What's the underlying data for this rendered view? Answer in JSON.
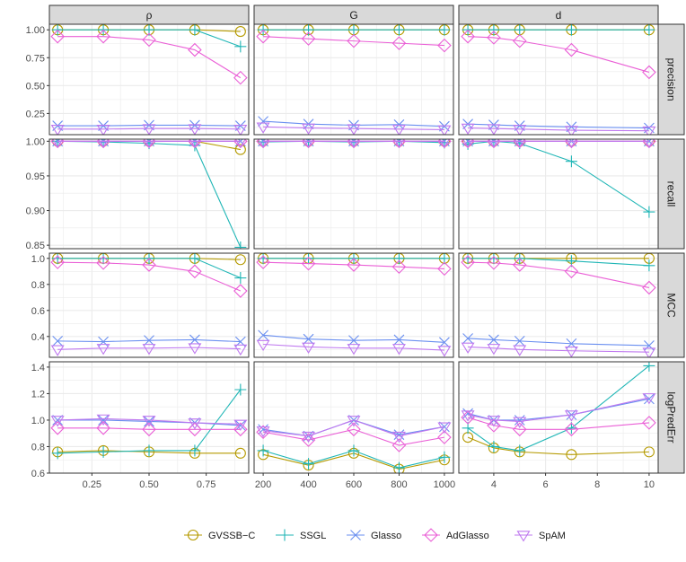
{
  "chart_data": {
    "type": "line",
    "layout": "faceted-grid",
    "columns": [
      "ρ",
      "G",
      "d"
    ],
    "rows": [
      "precision",
      "recall",
      "MCC",
      "logPredErr"
    ],
    "x": {
      "rho": [
        0.1,
        0.3,
        0.5,
        0.7,
        0.9
      ],
      "G": [
        200,
        400,
        600,
        800,
        1000
      ],
      "d": [
        3,
        4,
        5,
        7,
        10
      ]
    },
    "xlim": {
      "rho": [
        0.064,
        0.936
      ],
      "G": [
        160,
        1040
      ],
      "d": [
        2.65,
        10.35
      ]
    },
    "xticks": {
      "rho": [
        0.25,
        0.5,
        0.75
      ],
      "G": [
        200,
        400,
        600,
        800,
        1000
      ],
      "d": [
        4,
        6,
        8,
        10
      ]
    },
    "xtick_labels": {
      "rho": [
        "0.25",
        "0.50",
        "0.75"
      ],
      "G": [
        "200",
        "400",
        "600",
        "800",
        "1000"
      ],
      "d": [
        "4",
        "6",
        "8",
        "10"
      ]
    },
    "ylim": {
      "precision": [
        0.06,
        1.05
      ],
      "recall": [
        0.845,
        1.003
      ],
      "MCC": [
        0.24,
        1.04
      ],
      "logPredErr": [
        0.6,
        1.44
      ]
    },
    "yticks": {
      "precision": [
        0.25,
        0.5,
        0.75,
        1.0
      ],
      "recall": [
        0.85,
        0.9,
        0.95,
        1.0
      ],
      "MCC": [
        0.4,
        0.6,
        0.8,
        1.0
      ],
      "logPredErr": [
        0.6,
        0.8,
        1.0,
        1.2,
        1.4
      ]
    },
    "ytick_labels": {
      "precision": [
        "0.25",
        "0.50",
        "0.75",
        "1.00"
      ],
      "recall": [
        "0.85",
        "0.90",
        "0.95",
        "1.00"
      ],
      "MCC": [
        "0.4",
        "0.6",
        "0.8",
        "1.0"
      ],
      "logPredErr": [
        "0.6",
        "0.8",
        "1.0",
        "1.2",
        "1.4"
      ]
    },
    "grid": true,
    "legend_position": "bottom",
    "series": [
      {
        "name": "GVSSB−C",
        "key": "gvssb",
        "color": "#b59a00",
        "shape": "circle",
        "values": {
          "precision": {
            "rho": [
              1.0,
              1.0,
              1.0,
              1.0,
              0.985
            ],
            "G": [
              1.0,
              1.0,
              1.0,
              1.0,
              1.0
            ],
            "d": [
              1.0,
              1.0,
              1.0,
              1.0,
              1.0
            ]
          },
          "recall": {
            "rho": [
              1.0,
              1.0,
              1.0,
              1.0,
              0.988
            ],
            "G": [
              1.0,
              1.0,
              1.0,
              1.0,
              1.0
            ],
            "d": [
              1.0,
              1.0,
              1.0,
              1.0,
              1.0
            ]
          },
          "MCC": {
            "rho": [
              1.0,
              1.0,
              1.0,
              1.0,
              0.99
            ],
            "G": [
              1.0,
              1.0,
              1.0,
              1.0,
              1.0
            ],
            "d": [
              1.0,
              1.0,
              1.0,
              1.0,
              1.0
            ]
          },
          "logPredErr": {
            "rho": [
              0.76,
              0.77,
              0.76,
              0.75,
              0.75
            ],
            "G": [
              0.74,
              0.66,
              0.75,
              0.63,
              0.7
            ],
            "d": [
              0.87,
              0.79,
              0.76,
              0.74,
              0.76
            ]
          }
        }
      },
      {
        "name": "SSGL",
        "key": "ssgl",
        "color": "#20b6b6",
        "shape": "plus",
        "values": {
          "precision": {
            "rho": [
              1.0,
              1.0,
              1.0,
              1.0,
              0.85
            ],
            "G": [
              1.0,
              1.0,
              1.0,
              1.0,
              1.0
            ],
            "d": [
              1.0,
              1.0,
              1.0,
              1.0,
              1.0
            ]
          },
          "recall": {
            "rho": [
              1.0,
              0.999,
              0.997,
              0.994,
              0.847
            ],
            "G": [
              0.999,
              1.0,
              0.999,
              1.0,
              0.998
            ],
            "d": [
              0.996,
              1.0,
              0.997,
              0.971,
              0.898
            ]
          },
          "MCC": {
            "rho": [
              1.0,
              1.0,
              1.0,
              1.0,
              0.85
            ],
            "G": [
              1.0,
              1.0,
              1.0,
              1.0,
              1.0
            ],
            "d": [
              1.0,
              1.0,
              1.0,
              0.98,
              0.945
            ]
          },
          "logPredErr": {
            "rho": [
              0.75,
              0.76,
              0.77,
              0.77,
              1.23
            ],
            "G": [
              0.77,
              0.67,
              0.77,
              0.64,
              0.72
            ],
            "d": [
              0.94,
              0.8,
              0.77,
              0.94,
              1.41
            ]
          }
        }
      },
      {
        "name": "Glasso",
        "key": "glasso",
        "color": "#6a8ff0",
        "shape": "cross",
        "values": {
          "precision": {
            "rho": [
              0.14,
              0.14,
              0.145,
              0.145,
              0.14
            ],
            "G": [
              0.18,
              0.155,
              0.145,
              0.15,
              0.135
            ],
            "d": [
              0.155,
              0.148,
              0.14,
              0.13,
              0.12
            ]
          },
          "recall": {
            "rho": [
              1.0,
              1.0,
              1.0,
              1.0,
              1.0
            ],
            "G": [
              1.0,
              1.0,
              1.0,
              1.0,
              1.0
            ],
            "d": [
              1.0,
              1.0,
              1.0,
              1.0,
              1.0
            ]
          },
          "MCC": {
            "rho": [
              0.365,
              0.36,
              0.37,
              0.375,
              0.36
            ],
            "G": [
              0.41,
              0.38,
              0.37,
              0.375,
              0.355
            ],
            "d": [
              0.385,
              0.375,
              0.365,
              0.345,
              0.33
            ]
          },
          "logPredErr": {
            "rho": [
              1.0,
              1.0,
              0.99,
              0.98,
              0.96
            ],
            "G": [
              0.93,
              0.88,
              1.0,
              0.89,
              0.95
            ],
            "d": [
              1.05,
              1.0,
              1.0,
              1.04,
              1.16
            ]
          }
        }
      },
      {
        "name": "AdGlasso",
        "key": "adglasso",
        "color": "#ea5fd6",
        "shape": "diamond",
        "values": {
          "precision": {
            "rho": [
              0.94,
              0.94,
              0.91,
              0.82,
              0.57
            ],
            "G": [
              0.94,
              0.92,
              0.9,
              0.88,
              0.86
            ],
            "d": [
              0.94,
              0.93,
              0.9,
              0.82,
              0.62
            ]
          },
          "recall": {
            "rho": [
              1.0,
              1.0,
              1.0,
              1.0,
              1.0
            ],
            "G": [
              1.0,
              1.0,
              1.0,
              1.0,
              1.0
            ],
            "d": [
              1.0,
              1.0,
              1.0,
              1.0,
              1.0
            ]
          },
          "MCC": {
            "rho": [
              0.97,
              0.965,
              0.95,
              0.9,
              0.75
            ],
            "G": [
              0.97,
              0.96,
              0.95,
              0.935,
              0.92
            ],
            "d": [
              0.97,
              0.965,
              0.95,
              0.9,
              0.775
            ]
          },
          "logPredErr": {
            "rho": [
              0.94,
              0.94,
              0.93,
              0.93,
              0.93
            ],
            "G": [
              0.91,
              0.85,
              0.93,
              0.81,
              0.87
            ],
            "d": [
              1.02,
              0.96,
              0.93,
              0.93,
              0.98
            ]
          }
        }
      },
      {
        "name": "SpAM",
        "key": "spam",
        "color": "#bf78ef",
        "shape": "triangle-down",
        "values": {
          "precision": {
            "rho": [
              0.11,
              0.11,
              0.115,
              0.115,
              0.11
            ],
            "G": [
              0.13,
              0.12,
              0.115,
              0.11,
              0.105
            ],
            "d": [
              0.12,
              0.115,
              0.11,
              0.1,
              0.095
            ]
          },
          "recall": {
            "rho": [
              1.0,
              1.0,
              1.0,
              1.0,
              1.0
            ],
            "G": [
              1.0,
              1.0,
              1.0,
              1.0,
              1.0
            ],
            "d": [
              1.0,
              1.0,
              1.0,
              1.0,
              1.0
            ]
          },
          "MCC": {
            "rho": [
              0.3,
              0.31,
              0.31,
              0.315,
              0.305
            ],
            "G": [
              0.34,
              0.32,
              0.31,
              0.31,
              0.295
            ],
            "d": [
              0.32,
              0.31,
              0.3,
              0.29,
              0.28
            ]
          },
          "logPredErr": {
            "rho": [
              1.0,
              1.01,
              1.0,
              0.98,
              0.97
            ],
            "G": [
              0.92,
              0.88,
              1.0,
              0.88,
              0.95
            ],
            "d": [
              1.04,
              1.0,
              0.99,
              1.04,
              1.17
            ]
          }
        }
      }
    ]
  }
}
